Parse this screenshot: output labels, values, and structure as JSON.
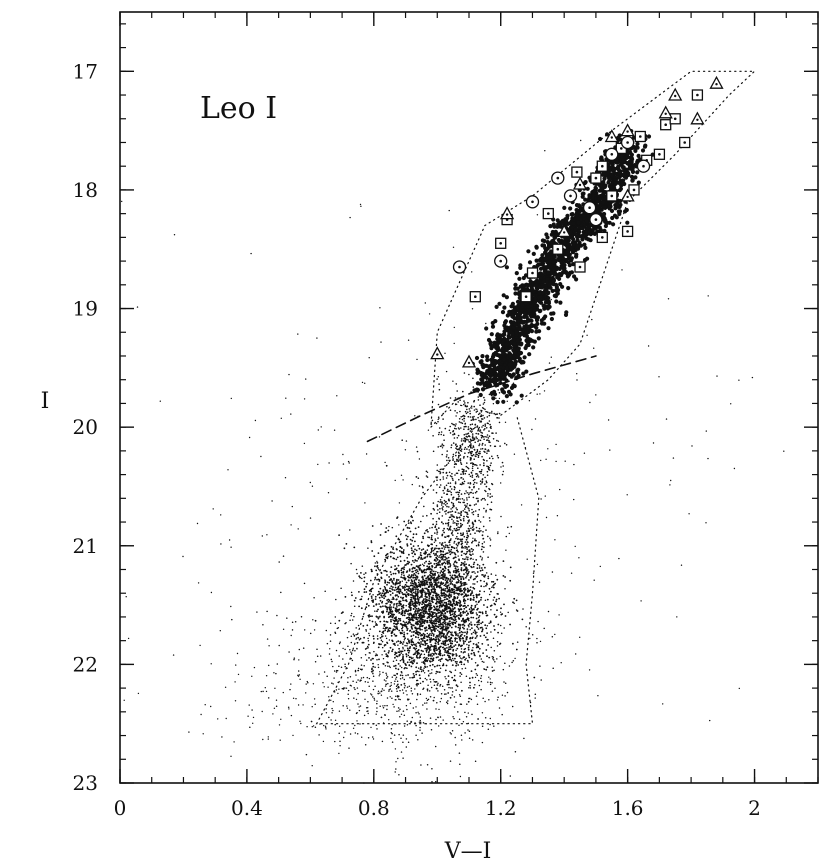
{
  "chart_data": {
    "type": "scatter",
    "title": "",
    "annotation": "Leo I",
    "xlabel": "V—I",
    "ylabel": "I",
    "xlim": [
      0,
      2.2
    ],
    "ylim": [
      23,
      16.5
    ],
    "y_inverted": true,
    "x_ticks": [
      0,
      0.4,
      0.8,
      1.2,
      1.6,
      2
    ],
    "x_tick_labels": [
      "0",
      "0.4",
      "0.8",
      "1.2",
      "1.6",
      "2"
    ],
    "y_ticks": [
      17,
      18,
      19,
      20,
      21,
      22,
      23
    ],
    "y_tick_labels": [
      "17",
      "18",
      "19",
      "20",
      "21",
      "22",
      "23"
    ],
    "grid": false,
    "legend": "none",
    "colors": {
      "ink": "#111111",
      "background": "#ffffff"
    },
    "series": [
      {
        "kind": "dots",
        "description_points": [
          [
            0.95,
            21.5
          ],
          [
            1.0,
            21.3
          ],
          [
            1.05,
            21.6
          ],
          [
            0.9,
            21.8
          ],
          [
            1.1,
            21.0
          ],
          [
            1.15,
            20.5
          ],
          [
            1.1,
            20.2
          ],
          [
            1.2,
            19.8
          ],
          [
            0.8,
            22.0
          ],
          [
            0.6,
            22.3
          ]
        ]
      },
      {
        "kind": "rgb-dense",
        "points": [
          [
            1.18,
            19.65
          ],
          [
            1.22,
            19.4
          ],
          [
            1.27,
            19.1
          ],
          [
            1.32,
            18.85
          ],
          [
            1.37,
            18.6
          ],
          [
            1.42,
            18.35
          ],
          [
            1.5,
            18.2
          ],
          [
            1.55,
            17.9
          ],
          [
            1.6,
            17.65
          ]
        ]
      },
      {
        "kind": "open-squares",
        "points": [
          [
            1.12,
            18.9
          ],
          [
            1.2,
            18.45
          ],
          [
            1.22,
            18.25
          ],
          [
            1.3,
            18.7
          ],
          [
            1.38,
            18.5
          ],
          [
            1.44,
            17.85
          ],
          [
            1.5,
            17.9
          ],
          [
            1.52,
            17.8
          ],
          [
            1.55,
            18.05
          ],
          [
            1.6,
            18.35
          ],
          [
            1.62,
            18.0
          ],
          [
            1.66,
            17.75
          ],
          [
            1.7,
            17.7
          ],
          [
            1.72,
            17.45
          ],
          [
            1.75,
            17.4
          ],
          [
            1.78,
            17.6
          ],
          [
            1.82,
            17.2
          ],
          [
            1.64,
            17.55
          ],
          [
            1.45,
            18.65
          ],
          [
            1.35,
            18.2
          ],
          [
            1.28,
            18.9
          ],
          [
            1.52,
            18.4
          ],
          [
            1.58,
            17.65
          ]
        ]
      },
      {
        "kind": "open-circles",
        "points": [
          [
            1.07,
            18.65
          ],
          [
            1.38,
            17.9
          ],
          [
            1.42,
            18.05
          ],
          [
            1.48,
            18.15
          ],
          [
            1.55,
            17.7
          ],
          [
            1.6,
            17.6
          ],
          [
            1.65,
            17.8
          ],
          [
            1.5,
            18.25
          ],
          [
            1.3,
            18.1
          ],
          [
            1.2,
            18.6
          ]
        ]
      },
      {
        "kind": "open-triangles",
        "points": [
          [
            1.0,
            19.38
          ],
          [
            1.1,
            19.45
          ],
          [
            1.22,
            18.2
          ],
          [
            1.45,
            17.95
          ],
          [
            1.55,
            17.55
          ],
          [
            1.6,
            17.5
          ],
          [
            1.72,
            17.35
          ],
          [
            1.75,
            17.2
          ],
          [
            1.82,
            17.4
          ],
          [
            1.88,
            17.1
          ],
          [
            1.6,
            18.05
          ],
          [
            1.4,
            18.35
          ]
        ]
      }
    ],
    "lines": [
      {
        "name": "",
        "style": "dashed",
        "points": [
          [
            0.78,
            20.12
          ],
          [
            0.95,
            19.9
          ],
          [
            1.1,
            19.72
          ],
          [
            1.3,
            19.55
          ],
          [
            1.5,
            19.4
          ]
        ]
      },
      {
        "name": "",
        "style": "dotted",
        "points": [
          [
            1.05,
            19.8
          ],
          [
            0.98,
            20.0
          ],
          [
            1.0,
            19.2
          ],
          [
            1.05,
            18.9
          ],
          [
            1.15,
            18.3
          ],
          [
            1.3,
            18.05
          ],
          [
            1.55,
            17.5
          ],
          [
            1.65,
            17.3
          ],
          [
            1.8,
            17.0
          ],
          [
            2.0,
            17.0
          ],
          [
            1.92,
            17.2
          ],
          [
            1.75,
            17.7
          ],
          [
            1.6,
            18.1
          ],
          [
            1.55,
            18.5
          ],
          [
            1.5,
            18.9
          ],
          [
            1.45,
            19.3
          ],
          [
            1.35,
            19.6
          ],
          [
            1.2,
            19.9
          ],
          [
            1.05,
            19.8
          ]
        ]
      },
      {
        "name": "",
        "style": "dotted",
        "points": [
          [
            1.12,
            20.0
          ],
          [
            0.95,
            20.6
          ],
          [
            0.8,
            21.3
          ],
          [
            0.72,
            22.0
          ],
          [
            0.62,
            22.5
          ],
          [
            1.3,
            22.5
          ],
          [
            1.28,
            22.0
          ],
          [
            1.3,
            21.4
          ],
          [
            1.32,
            20.6
          ],
          [
            1.25,
            19.9
          ]
        ]
      }
    ]
  }
}
